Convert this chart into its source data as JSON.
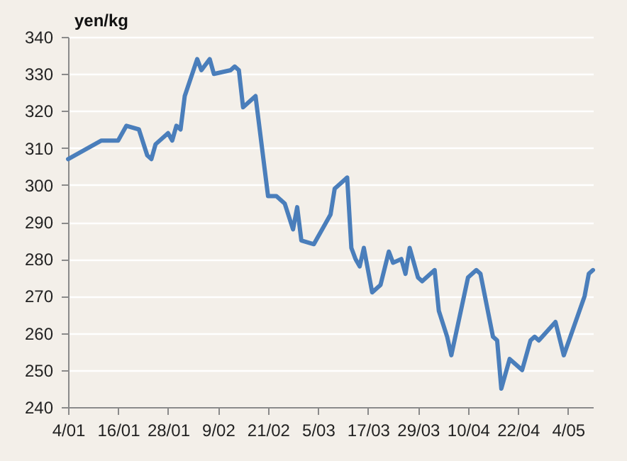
{
  "chart_data": {
    "type": "line",
    "ylabel": "yen/kg",
    "color": "#4a7ebb",
    "grid": "y",
    "marker": "none",
    "line_style": "solid",
    "x": [
      "--01-04",
      "--01-12",
      "--01-16",
      "--01-18",
      "--01-21",
      "--01-23",
      "--01-24",
      "--01-25",
      "--01-28",
      "--01-29",
      "--01-30",
      "--01-31",
      "--02-01",
      "--02-04",
      "--02-05",
      "--02-07",
      "--02-08",
      "--02-12",
      "--02-13",
      "--02-14",
      "--02-15",
      "--02-18",
      "--02-21",
      "--02-23",
      "--02-25",
      "--02-27",
      "--02-28",
      "--03-01",
      "--03-04",
      "--03-08",
      "--03-09",
      "--03-12",
      "--03-13",
      "--03-14",
      "--03-15",
      "--03-16",
      "--03-18",
      "--03-20",
      "--03-22",
      "--03-23",
      "--03-25",
      "--03-26",
      "--03-27",
      "--03-29",
      "--03-30",
      "--04-02",
      "--04-03",
      "--04-05",
      "--04-06",
      "--04-10",
      "--04-11",
      "--04-12",
      "--04-13",
      "--04-16",
      "--04-17",
      "--04-18",
      "--04-20",
      "--04-23",
      "--04-25",
      "--04-26",
      "--04-27",
      "--05-01",
      "--05-03",
      "--05-08",
      "--05-09",
      "--05-10"
    ],
    "values": [
      307,
      312,
      312,
      316,
      315,
      308,
      307,
      311,
      314,
      312,
      316,
      315,
      324,
      334,
      331,
      334,
      330,
      331,
      332,
      331,
      321,
      324,
      297,
      297,
      295,
      288,
      294,
      285,
      284,
      292,
      299,
      302,
      283,
      280,
      278,
      283,
      271,
      273,
      282,
      279,
      280,
      276,
      283,
      275,
      274,
      277,
      266,
      259,
      254,
      275,
      276,
      277,
      276,
      259,
      258,
      245,
      253,
      250,
      258,
      259,
      258,
      263,
      254,
      270,
      276,
      277
    ],
    "xlim": [
      "--01-04",
      "--05-10"
    ],
    "xticks": [
      {
        "value": "--01-04",
        "label": "4/01"
      },
      {
        "value": "--01-16",
        "label": "16/01"
      },
      {
        "value": "--01-28",
        "label": "28/01"
      },
      {
        "value": "--02-09",
        "label": "9/02"
      },
      {
        "value": "--02-21",
        "label": "21/02"
      },
      {
        "value": "--03-05",
        "label": "5/03"
      },
      {
        "value": "--03-17",
        "label": "17/03"
      },
      {
        "value": "--03-29",
        "label": "29/03"
      },
      {
        "value": "--04-10",
        "label": "10/04"
      },
      {
        "value": "--04-22",
        "label": "22/04"
      },
      {
        "value": "--05-04",
        "label": "4/05"
      }
    ],
    "ylim": [
      240,
      340
    ],
    "yticks": [
      240,
      250,
      260,
      270,
      280,
      290,
      300,
      310,
      320,
      330,
      340
    ]
  }
}
